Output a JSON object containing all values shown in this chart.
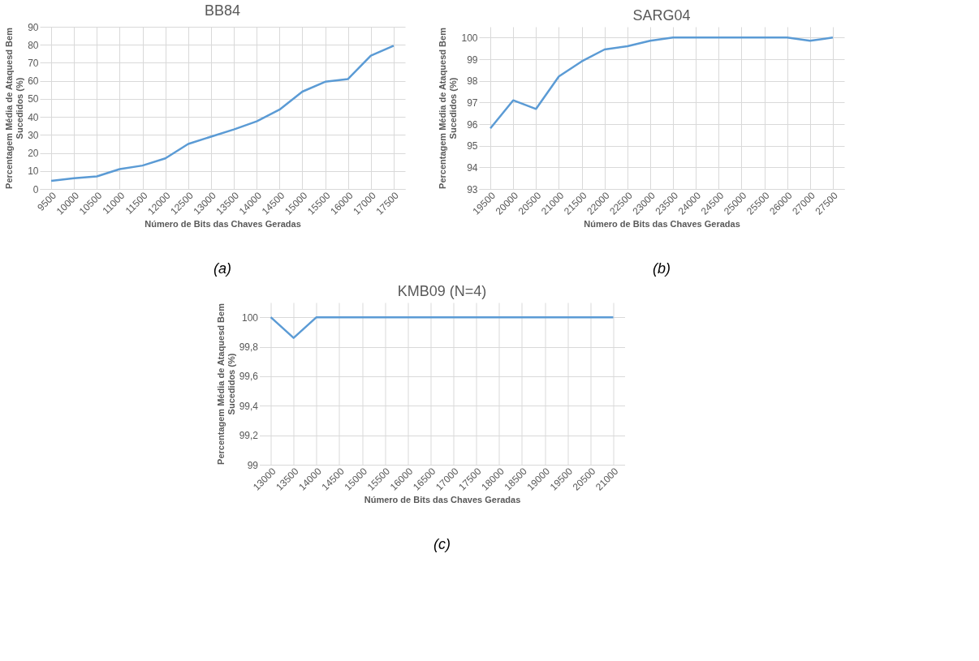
{
  "chart_data": [
    {
      "type": "line",
      "title": "BB84",
      "xlabel": "Número de Bits das Chaves Geradas",
      "ylabel": "Percentagem Média de Ataquesd Bem Sucedidos (%)",
      "categories": [
        "9500",
        "10000",
        "10500",
        "11000",
        "11500",
        "12000",
        "12500",
        "13000",
        "13500",
        "14000",
        "14500",
        "15000",
        "15500",
        "16000",
        "17000",
        "17500"
      ],
      "series": [
        {
          "color": "#5b9bd5",
          "values": [
            4.5,
            6,
            7,
            11,
            13,
            17,
            25,
            29,
            33,
            37.5,
            44,
            54,
            59.5,
            61,
            74,
            79.5
          ]
        }
      ],
      "ylim": [
        0,
        90
      ],
      "yticks": [
        0,
        10,
        20,
        30,
        40,
        50,
        60,
        70,
        80,
        90
      ],
      "grid": true,
      "marker": "none",
      "line_style": "solid",
      "annotations": [
        "(a)"
      ]
    },
    {
      "type": "line",
      "title": "SARG04",
      "xlabel": "Número de Bits das Chaves Geradas",
      "ylabel": "Percentagem Média de Ataquesd Bem Sucedidos (%)",
      "categories": [
        "19500",
        "20000",
        "20500",
        "21000",
        "21500",
        "22000",
        "22500",
        "23000",
        "23500",
        "24000",
        "24500",
        "25000",
        "25500",
        "26000",
        "27000",
        "27500"
      ],
      "series": [
        {
          "color": "#5b9bd5",
          "values": [
            95.8,
            97.1,
            96.7,
            98.2,
            98.9,
            99.45,
            99.6,
            99.85,
            100,
            100,
            100,
            100,
            100,
            100,
            99.85,
            100
          ]
        }
      ],
      "ylim": [
        93,
        100.5
      ],
      "yticks": [
        93,
        94,
        95,
        96,
        97,
        98,
        99,
        100
      ],
      "grid": true,
      "marker": "none",
      "line_style": "solid",
      "annotations": [
        "(b)"
      ]
    },
    {
      "type": "line",
      "title": "KMB09 (N=4)",
      "xlabel": "Número de Bits das Chaves Geradas",
      "ylabel": "Percentagem Média de Ataquesd Bem Sucedidos (%)",
      "categories": [
        "13000",
        "13500",
        "14000",
        "14500",
        "15000",
        "15500",
        "16000",
        "16500",
        "17000",
        "17500",
        "18000",
        "18500",
        "19000",
        "19500",
        "20500",
        "21000"
      ],
      "series": [
        {
          "color": "#5b9bd5",
          "values": [
            100,
            99.86,
            100,
            100,
            100,
            100,
            100,
            100,
            100,
            100,
            100,
            100,
            100,
            100,
            100,
            100
          ]
        }
      ],
      "ylim": [
        99,
        100.1
      ],
      "yticks": [
        {
          "value": 99,
          "label": "99"
        },
        {
          "value": 99.2,
          "label": "99,2"
        },
        {
          "value": 99.4,
          "label": "99,4"
        },
        {
          "value": 99.6,
          "label": "99,6"
        },
        {
          "value": 99.8,
          "label": "99,8"
        },
        {
          "value": 100,
          "label": "100"
        }
      ],
      "grid": true,
      "marker": "none",
      "line_style": "solid",
      "annotations": [
        "(c)"
      ]
    }
  ]
}
